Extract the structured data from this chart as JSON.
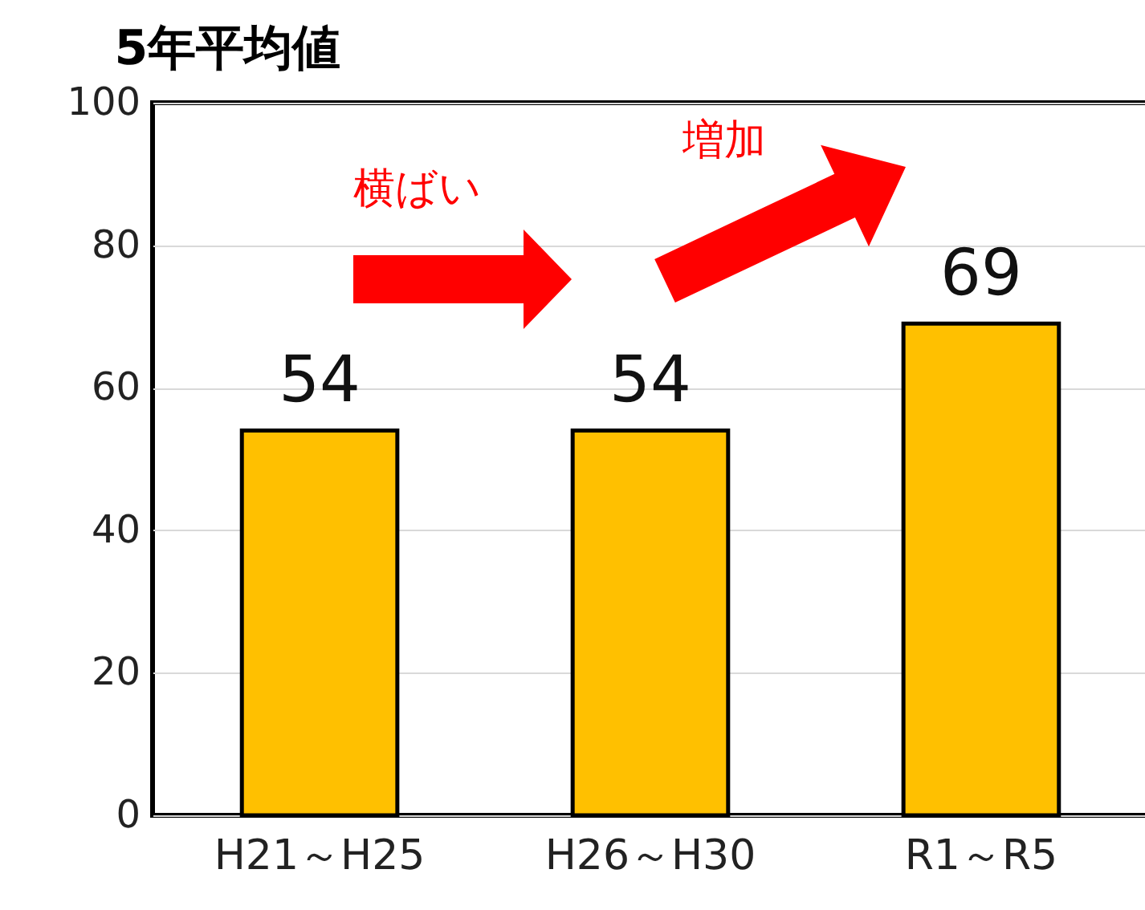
{
  "chart_data": {
    "type": "bar",
    "title": "5年平均値",
    "categories": [
      "H21～H25",
      "H26～H30",
      "R1～R5"
    ],
    "values": [
      54,
      54,
      69
    ],
    "color": "#ffc000",
    "data_labels": true,
    "ylim": [
      0,
      100
    ],
    "yticks": [
      0,
      20,
      40,
      60,
      80,
      100
    ],
    "grid": "y",
    "annotations": [
      "横ばい",
      "増加"
    ]
  }
}
